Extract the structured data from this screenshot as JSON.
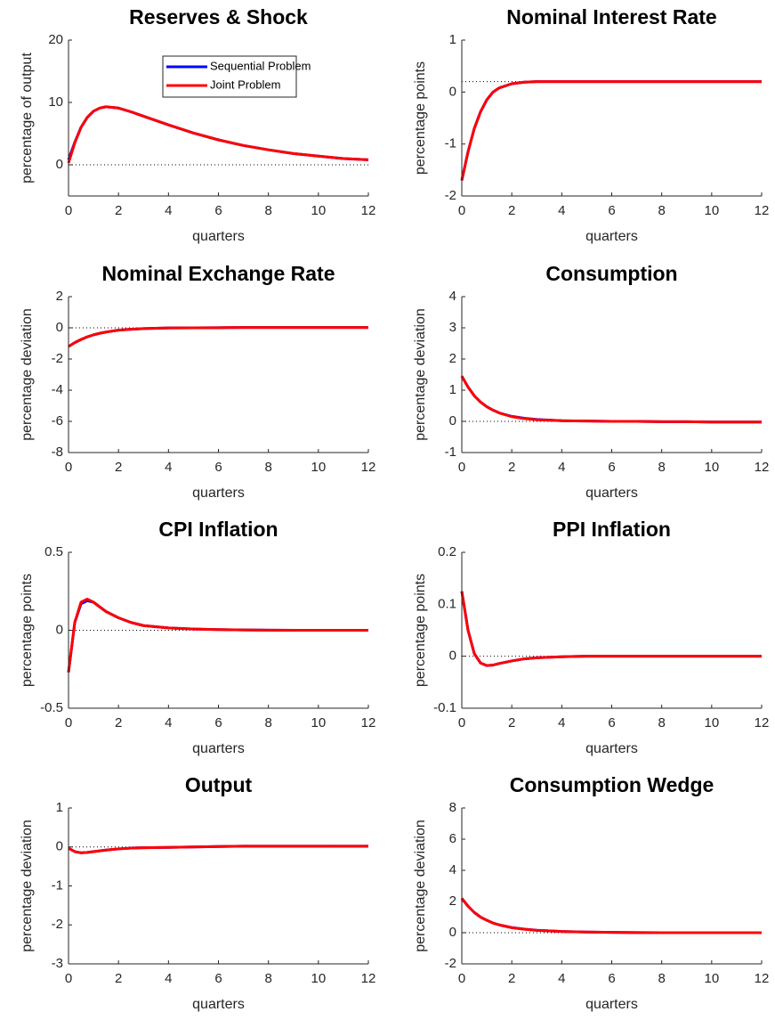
{
  "chart_data": [
    {
      "type": "line",
      "title": "Reserves & Shock",
      "xlabel": "quarters",
      "ylabel": "percentage of output",
      "x": [
        0,
        0.25,
        0.5,
        0.75,
        1,
        1.25,
        1.5,
        2,
        2.5,
        3,
        4,
        5,
        6,
        7,
        8,
        9,
        10,
        11,
        12
      ],
      "series": [
        {
          "name": "Sequential Problem",
          "color": "#0000ff",
          "values": [
            0.8,
            3.6,
            6.0,
            7.6,
            8.6,
            9.1,
            9.3,
            9.1,
            8.5,
            7.8,
            6.4,
            5.1,
            4.0,
            3.1,
            2.4,
            1.8,
            1.4,
            1.0,
            0.8
          ]
        },
        {
          "name": "Joint Problem",
          "color": "#ff0000",
          "values": [
            0.3,
            3.5,
            6.0,
            7.6,
            8.6,
            9.1,
            9.3,
            9.1,
            8.5,
            7.8,
            6.4,
            5.1,
            4.0,
            3.1,
            2.4,
            1.8,
            1.4,
            1.0,
            0.8
          ]
        }
      ],
      "xlim": [
        0,
        12
      ],
      "xticks": [
        0,
        2,
        4,
        6,
        8,
        10,
        12
      ],
      "ylim": [
        -5,
        20
      ],
      "yticks": [
        0,
        10,
        20
      ],
      "reference_line": 0,
      "legend": "upper right"
    },
    {
      "type": "line",
      "title": "Nominal Interest Rate",
      "xlabel": "quarters",
      "ylabel": "percentage points",
      "x": [
        0,
        0.25,
        0.5,
        0.75,
        1,
        1.25,
        1.5,
        2,
        2.5,
        3,
        4,
        5,
        6,
        7,
        8,
        9,
        10,
        11,
        12
      ],
      "series": [
        {
          "color": "#0000ff",
          "values": [
            -1.7,
            -1.15,
            -0.7,
            -0.38,
            -0.15,
            0.0,
            0.08,
            0.16,
            0.19,
            0.2,
            0.2,
            0.2,
            0.2,
            0.2,
            0.2,
            0.2,
            0.2,
            0.2,
            0.2
          ]
        },
        {
          "color": "#ff0000",
          "values": [
            -1.7,
            -1.15,
            -0.7,
            -0.38,
            -0.15,
            0.0,
            0.08,
            0.16,
            0.19,
            0.2,
            0.2,
            0.2,
            0.2,
            0.2,
            0.2,
            0.2,
            0.2,
            0.2,
            0.2
          ]
        }
      ],
      "xlim": [
        0,
        12
      ],
      "xticks": [
        0,
        2,
        4,
        6,
        8,
        10,
        12
      ],
      "ylim": [
        -2,
        1
      ],
      "yticks": [
        -2,
        -1,
        0,
        1
      ],
      "reference_line": 0.2
    },
    {
      "type": "line",
      "title": "Nominal Exchange Rate",
      "xlabel": "quarters",
      "ylabel": "percentage deviation",
      "x": [
        0,
        0.25,
        0.5,
        0.75,
        1,
        1.25,
        1.5,
        2,
        2.5,
        3,
        4,
        5,
        6,
        7,
        8,
        9,
        10,
        11,
        12
      ],
      "series": [
        {
          "color": "#0000ff",
          "values": [
            -1.2,
            -0.95,
            -0.75,
            -0.58,
            -0.45,
            -0.35,
            -0.27,
            -0.15,
            -0.09,
            -0.05,
            -0.01,
            0,
            0.01,
            0.02,
            0.02,
            0.02,
            0.02,
            0.02,
            0.02
          ]
        },
        {
          "color": "#ff0000",
          "values": [
            -1.2,
            -0.95,
            -0.75,
            -0.58,
            -0.45,
            -0.35,
            -0.27,
            -0.15,
            -0.09,
            -0.05,
            -0.01,
            0,
            0.01,
            0.02,
            0.02,
            0.02,
            0.02,
            0.02,
            0.02
          ]
        }
      ],
      "xlim": [
        0,
        12
      ],
      "xticks": [
        0,
        2,
        4,
        6,
        8,
        10,
        12
      ],
      "ylim": [
        -8,
        2
      ],
      "yticks": [
        -8,
        -6,
        -4,
        -2,
        0,
        2
      ],
      "reference_line": 0
    },
    {
      "type": "line",
      "title": "Consumption",
      "xlabel": "quarters",
      "ylabel": "percentage deviation",
      "x": [
        0,
        0.25,
        0.5,
        0.75,
        1,
        1.25,
        1.5,
        2,
        2.5,
        3,
        4,
        5,
        6,
        7,
        8,
        9,
        10,
        11,
        12
      ],
      "series": [
        {
          "color": "#0000ff",
          "values": [
            1.45,
            1.1,
            0.82,
            0.62,
            0.47,
            0.36,
            0.27,
            0.16,
            0.1,
            0.06,
            0.02,
            0.01,
            0,
            0,
            -0.01,
            -0.01,
            -0.02,
            -0.02,
            -0.02
          ]
        },
        {
          "color": "#ff0000",
          "values": [
            1.45,
            1.1,
            0.82,
            0.62,
            0.47,
            0.36,
            0.27,
            0.15,
            0.09,
            0.05,
            0.02,
            0.01,
            0,
            0,
            -0.01,
            -0.01,
            -0.02,
            -0.02,
            -0.02
          ]
        }
      ],
      "xlim": [
        0,
        12
      ],
      "xticks": [
        0,
        2,
        4,
        6,
        8,
        10,
        12
      ],
      "ylim": [
        -1,
        4
      ],
      "yticks": [
        -1,
        0,
        1,
        2,
        3,
        4
      ],
      "reference_line": 0
    },
    {
      "type": "line",
      "title": "CPI Inflation",
      "xlabel": "quarters",
      "ylabel": "percentage points",
      "x": [
        0,
        0.25,
        0.5,
        0.75,
        1,
        1.25,
        1.5,
        2,
        2.5,
        3,
        4,
        5,
        6,
        7,
        8,
        9,
        10,
        11,
        12
      ],
      "series": [
        {
          "color": "#0000ff",
          "values": [
            -0.27,
            0.05,
            0.17,
            0.19,
            0.18,
            0.15,
            0.12,
            0.08,
            0.05,
            0.03,
            0.015,
            0.008,
            0.004,
            0.002,
            0.001,
            0,
            0,
            0,
            0
          ]
        },
        {
          "color": "#ff0000",
          "values": [
            -0.27,
            0.05,
            0.18,
            0.2,
            0.18,
            0.15,
            0.12,
            0.08,
            0.05,
            0.03,
            0.015,
            0.008,
            0.004,
            0.002,
            0.001,
            0,
            0,
            0,
            0
          ]
        }
      ],
      "xlim": [
        0,
        12
      ],
      "xticks": [
        0,
        2,
        4,
        6,
        8,
        10,
        12
      ],
      "ylim": [
        -0.5,
        0.5
      ],
      "yticks": [
        -0.5,
        0,
        0.5
      ],
      "reference_line": 0
    },
    {
      "type": "line",
      "title": "PPI Inflation",
      "xlabel": "quarters",
      "ylabel": "percentage points",
      "x": [
        0,
        0.25,
        0.5,
        0.75,
        1,
        1.25,
        1.5,
        2,
        2.5,
        3,
        4,
        5,
        6,
        7,
        8,
        9,
        10,
        11,
        12
      ],
      "series": [
        {
          "color": "#0000ff",
          "values": [
            0.125,
            0.05,
            0.005,
            -0.013,
            -0.018,
            -0.017,
            -0.014,
            -0.009,
            -0.005,
            -0.003,
            -0.001,
            0,
            0,
            0,
            0,
            0,
            0,
            0,
            0
          ]
        },
        {
          "color": "#ff0000",
          "values": [
            0.125,
            0.05,
            0.005,
            -0.013,
            -0.018,
            -0.017,
            -0.014,
            -0.009,
            -0.005,
            -0.003,
            -0.001,
            0,
            0,
            0,
            0,
            0,
            0,
            0,
            0
          ]
        }
      ],
      "xlim": [
        0,
        12
      ],
      "xticks": [
        0,
        2,
        4,
        6,
        8,
        10,
        12
      ],
      "ylim": [
        -0.1,
        0.2
      ],
      "yticks": [
        -0.1,
        0,
        0.1,
        0.2
      ],
      "reference_line": 0
    },
    {
      "type": "line",
      "title": "Output",
      "xlabel": "quarters",
      "ylabel": "percentage deviation",
      "x": [
        0,
        0.25,
        0.5,
        0.75,
        1,
        1.25,
        1.5,
        2,
        2.5,
        3,
        4,
        5,
        6,
        7,
        8,
        9,
        10,
        11,
        12
      ],
      "series": [
        {
          "color": "#0000ff",
          "values": [
            -0.03,
            -0.12,
            -0.15,
            -0.14,
            -0.12,
            -0.1,
            -0.08,
            -0.05,
            -0.03,
            -0.02,
            -0.01,
            0,
            0.01,
            0.02,
            0.02,
            0.02,
            0.02,
            0.02,
            0.02
          ]
        },
        {
          "color": "#ff0000",
          "values": [
            -0.03,
            -0.12,
            -0.15,
            -0.14,
            -0.12,
            -0.1,
            -0.08,
            -0.05,
            -0.03,
            -0.02,
            -0.01,
            0,
            0.01,
            0.02,
            0.02,
            0.02,
            0.02,
            0.02,
            0.02
          ]
        }
      ],
      "xlim": [
        0,
        12
      ],
      "xticks": [
        0,
        2,
        4,
        6,
        8,
        10,
        12
      ],
      "ylim": [
        -3,
        1
      ],
      "yticks": [
        -3,
        -2,
        -1,
        0,
        1
      ],
      "reference_line": 0
    },
    {
      "type": "line",
      "title": "Consumption Wedge",
      "xlabel": "quarters",
      "ylabel": "percentage deviation",
      "x": [
        0,
        0.25,
        0.5,
        0.75,
        1,
        1.25,
        1.5,
        2,
        2.5,
        3,
        4,
        5,
        6,
        7,
        8,
        9,
        10,
        11,
        12
      ],
      "series": [
        {
          "color": "#0000ff",
          "values": [
            2.2,
            1.7,
            1.3,
            1.0,
            0.8,
            0.62,
            0.5,
            0.33,
            0.23,
            0.16,
            0.08,
            0.04,
            0.02,
            0.01,
            0,
            0,
            0,
            0,
            0
          ]
        },
        {
          "color": "#ff0000",
          "values": [
            2.2,
            1.7,
            1.3,
            1.0,
            0.8,
            0.62,
            0.5,
            0.32,
            0.22,
            0.15,
            0.08,
            0.04,
            0.02,
            0.01,
            0,
            0,
            0,
            0,
            0
          ]
        }
      ],
      "xlim": [
        0,
        12
      ],
      "xticks": [
        0,
        2,
        4,
        6,
        8,
        10,
        12
      ],
      "ylim": [
        -2,
        8
      ],
      "yticks": [
        -2,
        0,
        2,
        4,
        6,
        8
      ],
      "reference_line": 0
    }
  ]
}
